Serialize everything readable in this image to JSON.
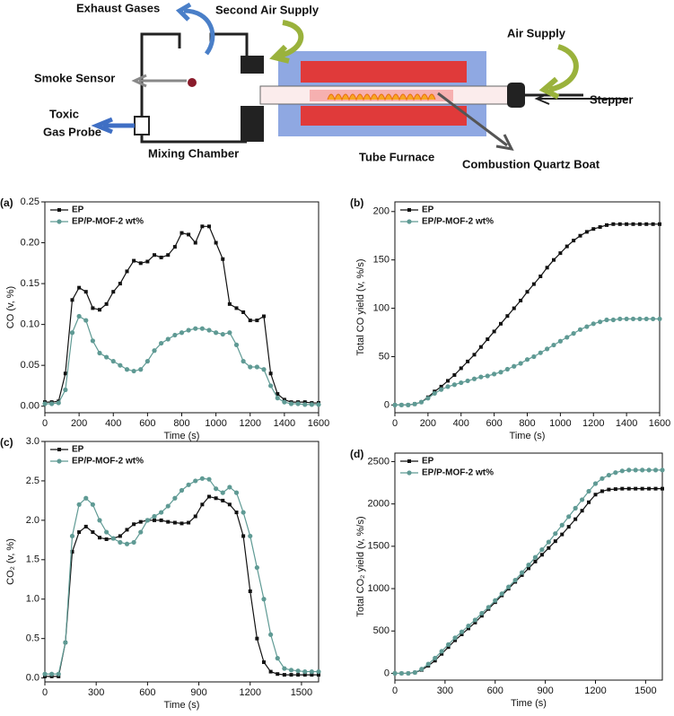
{
  "diagram": {
    "exhaust_gases": "Exhaust Gases",
    "second_air_supply": "Second Air Supply",
    "air_supply": "Air Supply",
    "smoke_sensor": "Smoke Sensor",
    "toxic_gas_probe": [
      "Toxic",
      "Gas Probe"
    ],
    "stepper": "Stepper",
    "mixing_chamber": "Mixing Chamber",
    "tube_furnace": "Tube Furnace",
    "combustion_quartz_boat": "Combustion Quartz Boat"
  },
  "chart_data": [
    {
      "type": "line",
      "panel": "(a)",
      "x_label": "Time (s)",
      "y_label": "CO (v, %)",
      "legend": "upper left",
      "x": [
        0,
        40,
        80,
        120,
        160,
        200,
        240,
        280,
        320,
        360,
        400,
        440,
        480,
        520,
        560,
        600,
        640,
        680,
        720,
        760,
        800,
        840,
        880,
        920,
        960,
        1000,
        1040,
        1080,
        1120,
        1160,
        1200,
        1240,
        1280,
        1320,
        1360,
        1400,
        1440,
        1480,
        1520,
        1560,
        1600
      ],
      "series": [
        {
          "name": "EP",
          "color": "#111111",
          "marker": "square",
          "values": [
            0.005,
            0.005,
            0.006,
            0.04,
            0.13,
            0.145,
            0.14,
            0.12,
            0.118,
            0.125,
            0.14,
            0.15,
            0.165,
            0.178,
            0.175,
            0.177,
            0.185,
            0.182,
            0.185,
            0.195,
            0.212,
            0.21,
            0.2,
            0.22,
            0.22,
            0.2,
            0.18,
            0.125,
            0.12,
            0.115,
            0.105,
            0.105,
            0.11,
            0.04,
            0.015,
            0.008,
            0.005,
            0.005,
            0.005,
            0.004,
            0.004
          ]
        },
        {
          "name": "EP/P-MOF-2 wt%",
          "color": "#5f9a94",
          "marker": "circle",
          "values": [
            0.003,
            0.003,
            0.004,
            0.02,
            0.09,
            0.11,
            0.105,
            0.08,
            0.065,
            0.06,
            0.055,
            0.05,
            0.045,
            0.043,
            0.045,
            0.055,
            0.068,
            0.077,
            0.082,
            0.087,
            0.09,
            0.093,
            0.095,
            0.095,
            0.093,
            0.09,
            0.088,
            0.09,
            0.075,
            0.055,
            0.048,
            0.048,
            0.045,
            0.025,
            0.01,
            0.005,
            0.003,
            0.003,
            0.002,
            0.002,
            0.002
          ]
        }
      ],
      "xlim": [
        0,
        1600
      ],
      "xticks": [
        0,
        200,
        400,
        600,
        800,
        1000,
        1200,
        1400,
        1600
      ],
      "ylim": [
        -0.008,
        0.25
      ],
      "yticks": [
        {
          "value": 0,
          "label": "0.00"
        },
        {
          "value": 0.05,
          "label": "0.05"
        },
        {
          "value": 0.1,
          "label": "0.10"
        },
        {
          "value": 0.15,
          "label": "0.15"
        },
        {
          "value": 0.2,
          "label": "0.20"
        },
        {
          "value": 0.25,
          "label": "0.25"
        }
      ]
    },
    {
      "type": "line",
      "panel": "(b)",
      "x_label": "Time (s)",
      "y_label": "Total CO yield (v, %/s)",
      "legend": "upper left",
      "x": [
        0,
        40,
        80,
        120,
        160,
        200,
        240,
        280,
        320,
        360,
        400,
        440,
        480,
        520,
        560,
        600,
        640,
        680,
        720,
        760,
        800,
        840,
        880,
        920,
        960,
        1000,
        1040,
        1080,
        1120,
        1160,
        1200,
        1240,
        1280,
        1320,
        1360,
        1400,
        1440,
        1480,
        1520,
        1560,
        1600
      ],
      "series": [
        {
          "name": "EP",
          "color": "#111111",
          "marker": "square",
          "values": [
            0,
            0,
            0,
            1,
            3,
            8,
            14,
            19,
            25,
            31,
            38,
            45,
            52,
            60,
            68,
            76,
            84,
            92,
            100,
            108,
            117,
            125,
            133,
            142,
            150,
            157,
            164,
            170,
            175,
            179,
            182,
            184,
            186,
            187,
            187,
            187,
            187,
            187,
            187,
            187,
            187
          ]
        },
        {
          "name": "EP/P-MOF-2 wt%",
          "color": "#5f9a94",
          "marker": "circle",
          "values": [
            0,
            0,
            0,
            1,
            3,
            7,
            12,
            16,
            19,
            21,
            23,
            25,
            27,
            29,
            30,
            32,
            34,
            37,
            40,
            43,
            47,
            50,
            54,
            58,
            62,
            66,
            70,
            74,
            78,
            81,
            84,
            86,
            88,
            88,
            89,
            89,
            89,
            89,
            89,
            89,
            89
          ]
        }
      ],
      "xlim": [
        0,
        1600
      ],
      "xticks": [
        0,
        200,
        400,
        600,
        800,
        1000,
        1200,
        1400,
        1600
      ],
      "ylim": [
        -8,
        210
      ],
      "yticks": [
        0,
        50,
        100,
        150,
        200
      ]
    },
    {
      "type": "line",
      "panel": "(c)",
      "x_label": "Time (s)",
      "y_label": "CO₂ (v, %)",
      "legend": "upper left",
      "x": [
        0,
        40,
        80,
        120,
        160,
        200,
        240,
        280,
        320,
        360,
        400,
        440,
        480,
        520,
        560,
        600,
        640,
        680,
        720,
        760,
        800,
        840,
        880,
        920,
        960,
        1000,
        1040,
        1080,
        1120,
        1160,
        1200,
        1240,
        1280,
        1320,
        1360,
        1400,
        1440,
        1480,
        1520,
        1560,
        1600
      ],
      "series": [
        {
          "name": "EP",
          "color": "#111111",
          "marker": "square",
          "values": [
            0.02,
            0.02,
            0.02,
            0.45,
            1.6,
            1.85,
            1.92,
            1.85,
            1.78,
            1.76,
            1.77,
            1.8,
            1.88,
            1.95,
            1.98,
            2.0,
            2.0,
            2.0,
            1.98,
            1.97,
            1.96,
            1.97,
            2.05,
            2.2,
            2.3,
            2.28,
            2.25,
            2.2,
            2.1,
            1.8,
            1.1,
            0.5,
            0.2,
            0.08,
            0.05,
            0.04,
            0.04,
            0.04,
            0.04,
            0.04,
            0.04
          ]
        },
        {
          "name": "EP/P-MOF-2 wt%",
          "color": "#5f9a94",
          "marker": "circle",
          "values": [
            0.05,
            0.05,
            0.05,
            0.45,
            1.8,
            2.2,
            2.28,
            2.2,
            2.0,
            1.85,
            1.77,
            1.72,
            1.7,
            1.72,
            1.85,
            2.0,
            2.05,
            2.1,
            2.18,
            2.28,
            2.38,
            2.45,
            2.5,
            2.53,
            2.52,
            2.4,
            2.35,
            2.42,
            2.35,
            2.1,
            1.8,
            1.4,
            1.0,
            0.55,
            0.25,
            0.12,
            0.1,
            0.09,
            0.08,
            0.08,
            0.08
          ]
        }
      ],
      "xlim": [
        0,
        1600
      ],
      "xticks": [
        0,
        300,
        600,
        900,
        1200,
        1500
      ],
      "ylim": [
        -0.05,
        3.0
      ],
      "yticks": [
        {
          "value": 0,
          "label": "0.0"
        },
        0.5,
        {
          "value": 1,
          "label": "1.0"
        },
        1.5,
        {
          "value": 2,
          "label": "2.0"
        },
        2.5,
        {
          "value": 3,
          "label": "3.0"
        }
      ]
    },
    {
      "type": "line",
      "panel": "(d)",
      "x_label": "Time (s)",
      "y_label": "Total CO₂ yield (v, %/s)",
      "legend": "upper left",
      "x": [
        0,
        40,
        80,
        120,
        160,
        200,
        240,
        280,
        320,
        360,
        400,
        440,
        480,
        520,
        560,
        600,
        640,
        680,
        720,
        760,
        800,
        840,
        880,
        920,
        960,
        1000,
        1040,
        1080,
        1120,
        1160,
        1200,
        1240,
        1280,
        1320,
        1360,
        1400,
        1440,
        1480,
        1520,
        1560,
        1600
      ],
      "series": [
        {
          "name": "EP",
          "color": "#111111",
          "marker": "square",
          "values": [
            0,
            0,
            0,
            10,
            40,
            90,
            150,
            230,
            310,
            390,
            460,
            530,
            600,
            680,
            760,
            840,
            920,
            1000,
            1080,
            1160,
            1240,
            1320,
            1400,
            1480,
            1560,
            1640,
            1730,
            1820,
            1920,
            2020,
            2110,
            2150,
            2170,
            2175,
            2180,
            2180,
            2180,
            2180,
            2180,
            2180,
            2180
          ]
        },
        {
          "name": "EP/P-MOF-2 wt%",
          "color": "#5f9a94",
          "marker": "circle",
          "values": [
            0,
            0,
            0,
            10,
            50,
            110,
            180,
            260,
            340,
            420,
            490,
            560,
            630,
            710,
            780,
            860,
            940,
            1020,
            1100,
            1190,
            1280,
            1370,
            1460,
            1550,
            1650,
            1750,
            1850,
            1950,
            2050,
            2150,
            2240,
            2300,
            2340,
            2370,
            2390,
            2400,
            2400,
            2400,
            2400,
            2400,
            2400
          ]
        }
      ],
      "xlim": [
        0,
        1600
      ],
      "xticks": [
        0,
        300,
        600,
        900,
        1200,
        1500
      ],
      "ylim": [
        -80,
        2600
      ],
      "yticks": [
        0,
        500,
        1000,
        1500,
        2000,
        2500
      ]
    }
  ]
}
